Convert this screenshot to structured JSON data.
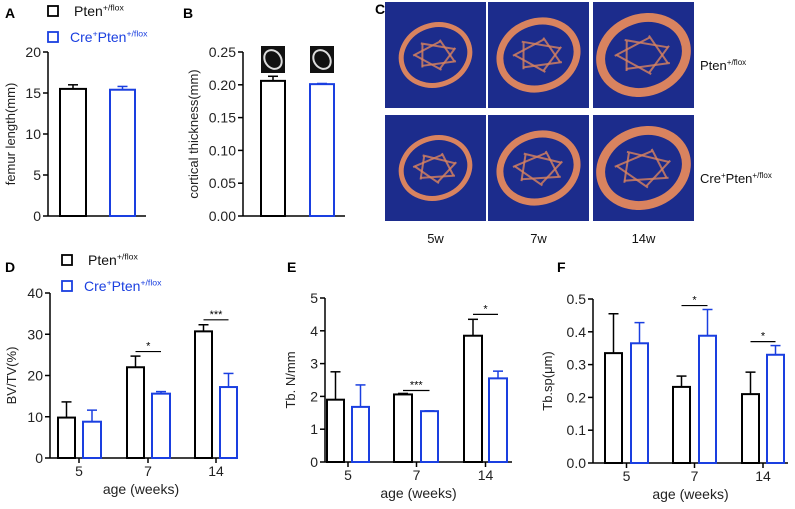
{
  "colors": {
    "control": "#000000",
    "mutant": "#1a3fe0",
    "ct_bg": "#1c2c8c",
    "bone": "#d9835f"
  },
  "legend": {
    "control": "Pten",
    "control_sup": "+/flox",
    "mutant_pre": "Cre",
    "mutant_pre_sup": "+",
    "mutant": "Pten",
    "mutant_sup": "+/flox"
  },
  "panel_c": {
    "label": "C",
    "rows": [
      {
        "label": "Pten",
        "sup": "+/flox"
      },
      {
        "label": "Pten",
        "pre": "Cre",
        "pre_sup": "+",
        "sup": "+/flox"
      }
    ],
    "columns": [
      "5w",
      "7w",
      "14w"
    ]
  },
  "chart_data": [
    {
      "id": "A",
      "label": "A",
      "type": "bar",
      "ylabel": "femur length(mm)",
      "ylim": [
        0,
        20
      ],
      "yticks": [
        "0",
        "5",
        "10",
        "15",
        "20"
      ],
      "categories": [
        ""
      ],
      "series": [
        {
          "name": "Pten+/flox",
          "values": [
            15.5
          ],
          "errors": [
            0.5
          ]
        },
        {
          "name": "Cre+Pten+/flox",
          "values": [
            15.4
          ],
          "errors": [
            0.4
          ]
        }
      ],
      "significance": []
    },
    {
      "id": "B",
      "label": "B",
      "type": "bar",
      "ylabel": "cortical thickness(mm)",
      "ylim": [
        0,
        0.25
      ],
      "yticks": [
        "0.00",
        "0.05",
        "0.10",
        "0.15",
        "0.20",
        "0.25"
      ],
      "categories": [
        ""
      ],
      "series": [
        {
          "name": "Pten+/flox",
          "values": [
            0.206
          ],
          "errors": [
            0.007
          ]
        },
        {
          "name": "Cre+Pten+/flox",
          "values": [
            0.201
          ],
          "errors": [
            0.001
          ]
        }
      ],
      "significance": []
    },
    {
      "id": "D",
      "label": "D",
      "type": "bar",
      "ylabel": "BV/TV(%)",
      "xlabel": "age (weeks)",
      "ylim": [
        0,
        40
      ],
      "yticks": [
        "0",
        "10",
        "20",
        "30",
        "40"
      ],
      "categories": [
        "5",
        "7",
        "14"
      ],
      "series": [
        {
          "name": "Pten+/flox",
          "values": [
            9.8,
            22.0,
            30.7
          ],
          "errors": [
            3.8,
            2.7,
            1.6
          ]
        },
        {
          "name": "Cre+Pten+/flox",
          "values": [
            8.8,
            15.6,
            17.2
          ],
          "errors": [
            2.8,
            0.5,
            3.3
          ]
        }
      ],
      "significance": [
        {
          "category": "7",
          "mark": "*",
          "y": 25.8
        },
        {
          "category": "14",
          "mark": "***",
          "y": 33.5
        }
      ]
    },
    {
      "id": "E",
      "label": "E",
      "type": "bar",
      "ylabel": "Tb. N/mm",
      "xlabel": "age (weeks)",
      "ylim": [
        0,
        5
      ],
      "yticks": [
        "0",
        "1",
        "2",
        "3",
        "4",
        "5"
      ],
      "categories": [
        "5",
        "7",
        "14"
      ],
      "series": [
        {
          "name": "Pten+/flox",
          "values": [
            1.9,
            2.06,
            3.85
          ],
          "errors": [
            0.85,
            0.03,
            0.5
          ]
        },
        {
          "name": "Cre+Pten+/flox",
          "values": [
            1.68,
            1.55,
            2.55
          ],
          "errors": [
            0.67,
            0.01,
            0.22
          ]
        }
      ],
      "significance": [
        {
          "category": "7",
          "mark": "***",
          "y": 2.18
        },
        {
          "category": "14",
          "mark": "*",
          "y": 4.5
        }
      ]
    },
    {
      "id": "F",
      "label": "F",
      "type": "bar",
      "ylabel": "Tb.sp(μm)",
      "xlabel": "age (weeks)",
      "ylim": [
        0,
        0.5
      ],
      "yticks": [
        "0.0",
        "0.1",
        "0.2",
        "0.3",
        "0.4",
        "0.5"
      ],
      "categories": [
        "5",
        "7",
        "14"
      ],
      "series": [
        {
          "name": "Pten+/flox",
          "values": [
            0.335,
            0.232,
            0.21
          ],
          "errors": [
            0.12,
            0.033,
            0.067
          ]
        },
        {
          "name": "Cre+Pten+/flox",
          "values": [
            0.365,
            0.388,
            0.33
          ],
          "errors": [
            0.063,
            0.08,
            0.028
          ]
        }
      ],
      "significance": [
        {
          "category": "7",
          "mark": "*",
          "y": 0.48
        },
        {
          "category": "14",
          "mark": "*",
          "y": 0.37
        }
      ]
    }
  ]
}
